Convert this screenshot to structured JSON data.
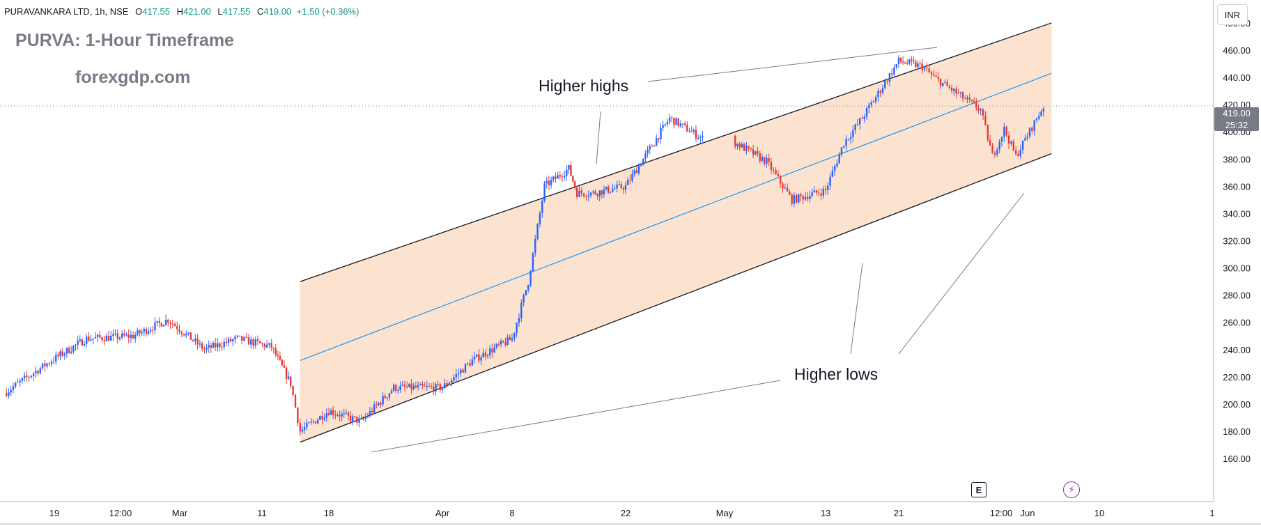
{
  "header": {
    "symbol": "PURAVANKARA LTD, 1h, NSE",
    "open_label": "O",
    "open": "417.55",
    "high_label": "H",
    "high": "421.00",
    "low_label": "L",
    "low": "417.55",
    "close_label": "C",
    "close": "419.00",
    "change": "+1.50 (+0.36%)"
  },
  "title": "PURVA: 1-Hour Timeframe",
  "site": "forexgdp.com",
  "annotations": {
    "higher_highs": "Higher highs",
    "higher_lows": "Higher lows"
  },
  "price_axis": {
    "currency": "INR",
    "last_price": "419.00",
    "countdown": "25:32",
    "ticks": [
      "480.00",
      "460.00",
      "440.00",
      "420.00",
      "400.00",
      "380.00",
      "360.00",
      "340.00",
      "320.00",
      "300.00",
      "280.00",
      "260.00",
      "240.00",
      "220.00",
      "200.00",
      "180.00",
      "160.00"
    ]
  },
  "time_axis": {
    "ticks": [
      "19",
      "12:00",
      "Mar",
      "11",
      "18",
      "Apr",
      "8",
      "22",
      "May",
      "13",
      "21",
      "12:00",
      "Jun",
      "10",
      "1"
    ]
  },
  "buttons": {
    "earnings": "E",
    "flash": "⚡"
  },
  "colors": {
    "up": "#2962ff",
    "down": "#e53935",
    "channel_fill": "#fbe3cf",
    "channel_line": "#131722",
    "midline": "#2196f3"
  },
  "chart_data": {
    "type": "candlestick",
    "title": "PURVA: 1-Hour Timeframe",
    "ylim": [
      160,
      480
    ],
    "y_ticks": [
      480,
      460,
      440,
      420,
      400,
      380,
      360,
      340,
      320,
      300,
      280,
      260,
      240,
      220,
      200,
      180,
      160
    ],
    "x_ticks": [
      "19",
      "12:00",
      "Mar",
      "11",
      "18",
      "Apr",
      "8",
      "22",
      "May",
      "13",
      "21",
      "12:00",
      "Jun",
      "10",
      "1"
    ],
    "last_price": 419.0,
    "series": [
      {
        "name": "",
        "x": [
          "Feb 16",
          "Feb 19",
          "Feb 22",
          "Feb 26",
          "Feb 29",
          "Mar 4",
          "Mar 8",
          "Mar 12",
          "Mar 14",
          "Mar 15",
          "Mar 18",
          "Mar 22",
          "Mar 26",
          "Apr 1",
          "Apr 4",
          "Apr 8",
          "Apr 10",
          "Apr 12",
          "Apr 15",
          "Apr 16",
          "Apr 18",
          "Apr 22",
          "Apr 24",
          "Apr 26",
          "Apr 29",
          "May 2",
          "May 6",
          "May 9",
          "May 13",
          "May 15",
          "May 17",
          "May 21",
          "May 23",
          "May 24",
          "May 28",
          "May 29",
          "May 30",
          "May 31",
          "Jun 3"
        ],
        "values": [
          208,
          232,
          248,
          250,
          262,
          240,
          248,
          242,
          215,
          180,
          195,
          187,
          212,
          212,
          232,
          248,
          290,
          360,
          373,
          355,
          355,
          360,
          385,
          410,
          395,
          393,
          378,
          350,
          357,
          392,
          410,
          452,
          448,
          440,
          416,
          382,
          402,
          382,
          419
        ]
      }
    ],
    "overlays": {
      "channel_upper": {
        "start": {
          "x": "Mar 15",
          "y": 290
        },
        "end": {
          "x": "Jun 4",
          "y": 480
        }
      },
      "channel_mid": {
        "start": {
          "x": "Mar 15",
          "y": 232
        },
        "end": {
          "x": "Jun 4",
          "y": 443
        }
      },
      "channel_lower": {
        "start": {
          "x": "Mar 15",
          "y": 172
        },
        "end": {
          "x": "Jun 4",
          "y": 384
        }
      }
    }
  }
}
